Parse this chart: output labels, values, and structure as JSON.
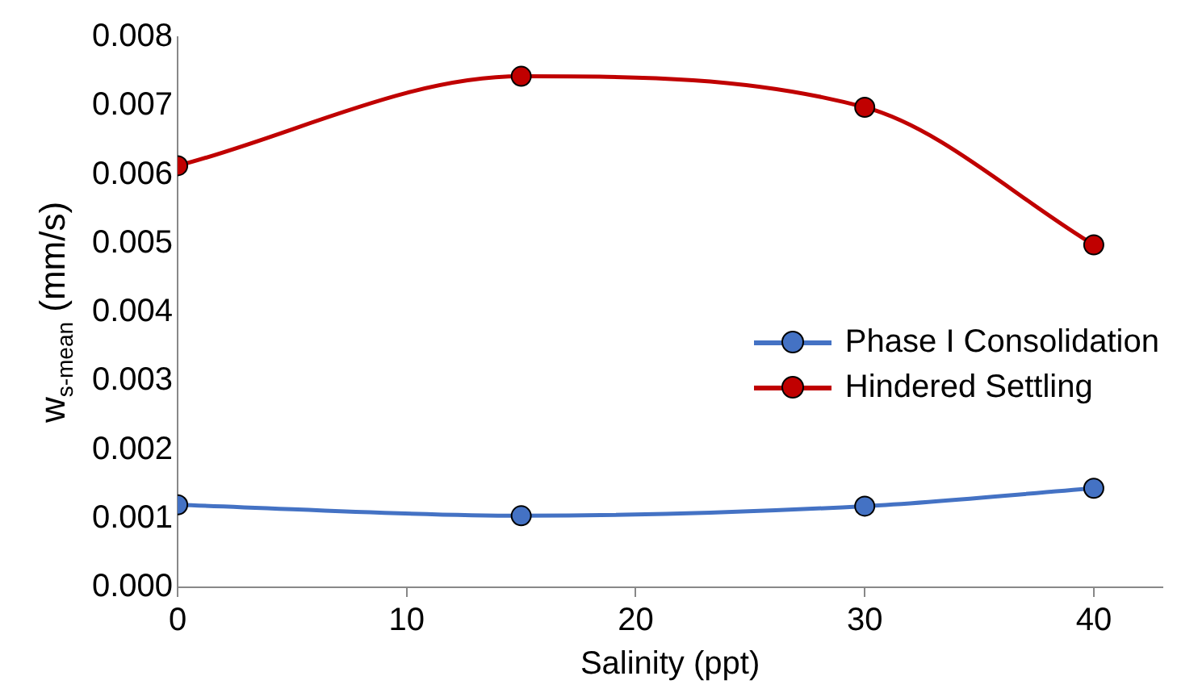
{
  "chart_data": {
    "type": "line",
    "xlabel": "Salinity (ppt)",
    "ylabel": "w$_{s-mean}$ (mm/s)",
    "x": [
      0,
      15,
      30,
      40
    ],
    "series": [
      {
        "name": "Phase I Consolidation",
        "color": "#4472c4",
        "values": [
          0.0012,
          0.00104,
          0.00118,
          0.00144
        ]
      },
      {
        "name": "Hindered Settling",
        "color": "#c00000",
        "values": [
          0.00613,
          0.00743,
          0.00698,
          0.00498
        ]
      }
    ],
    "xlim": [
      0,
      43
    ],
    "xticks": [
      0,
      10,
      20,
      30,
      40
    ],
    "ylim": [
      0,
      0.008
    ],
    "yticks": [
      {
        "value": 0,
        "label": "0.000"
      },
      0.001,
      0.002,
      0.003,
      0.004,
      0.005,
      0.006,
      0.007,
      0.008
    ],
    "grid": false,
    "legend": "right",
    "marker": "circle",
    "line_style": "solid"
  }
}
